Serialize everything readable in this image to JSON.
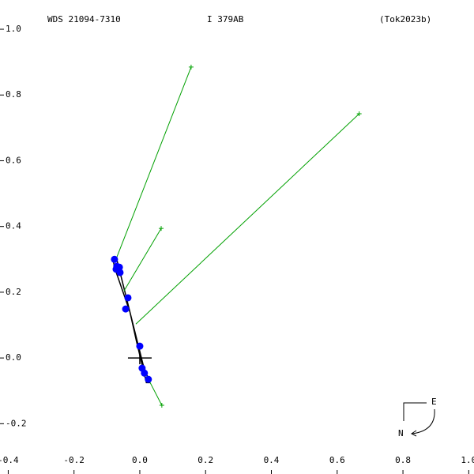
{
  "chart_data": {
    "type": "scatter",
    "header": [
      "WDS 21094-7310",
      "I   379AB",
      "(Tok2023b)"
    ],
    "compass": [
      "E",
      "N"
    ],
    "xlim": [
      -0.425,
      1.016
    ],
    "ylim": [
      -0.353,
      1.089
    ],
    "xticks": [
      {
        "value": -0.4,
        "label": "-0.4"
      },
      {
        "value": -0.2,
        "label": "-0.2"
      },
      {
        "value": 0,
        "label": "0.0"
      },
      0.2,
      0.4,
      0.6,
      0.8,
      {
        "value": 1,
        "label": "1.0"
      }
    ],
    "yticks": [
      {
        "value": -0.2,
        "label": "-0.2"
      },
      {
        "value": 0,
        "label": "0.0"
      },
      0.2,
      0.4,
      0.6,
      0.8,
      {
        "value": 1,
        "label": "1.0"
      }
    ],
    "orbit": {
      "color": "#000000",
      "x": [
        -0.082,
        -0.07,
        -0.04,
        0.01,
        0.03,
        0.02,
        -0.01,
        -0.03,
        -0.075,
        -0.082
      ],
      "y": [
        0.3,
        0.3,
        0.18,
        -0.02,
        -0.075,
        -0.075,
        0.05,
        0.14,
        0.27,
        0.3
      ]
    },
    "observations": {
      "color": "#0000ff",
      "x": [
        -0.077,
        -0.07,
        -0.062,
        -0.06,
        -0.072,
        -0.036,
        -0.043,
        0.0,
        0.007,
        0.014,
        0.026
      ],
      "y": [
        0.3,
        0.279,
        0.276,
        0.26,
        0.27,
        0.183,
        0.149,
        0.036,
        -0.031,
        -0.046,
        -0.065
      ]
    },
    "residuals": {
      "color": "#00a000",
      "x": [
        0.156,
        0.667,
        0.065,
        0.067
      ],
      "y": [
        0.885,
        0.743,
        0.394,
        -0.144
      ],
      "from_x": [
        -0.074,
        -0.012,
        -0.048,
        0.014
      ],
      "from_y": [
        0.296,
        0.103,
        0.204,
        -0.041
      ]
    }
  }
}
